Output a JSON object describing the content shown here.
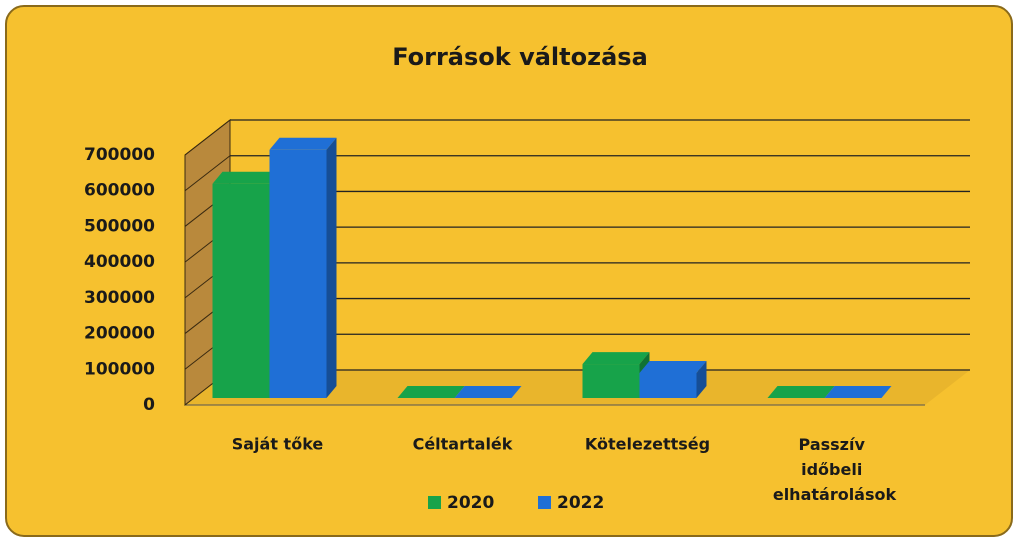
{
  "chart_data": {
    "type": "bar3d",
    "title": "Források változása",
    "categories": [
      "Saját tőke",
      "Céltartalék",
      "Kötelezettség",
      "Passzív időbeli elhatárolások"
    ],
    "series": [
      {
        "name": "2020",
        "color": "#17a34a",
        "values": [
          600000,
          0,
          95000,
          0
        ]
      },
      {
        "name": "2022",
        "color": "#1f6fd6",
        "values": [
          695000,
          0,
          70000,
          0
        ]
      }
    ],
    "ylim": [
      0,
      700000
    ],
    "yticks": [
      0,
      100000,
      200000,
      300000,
      400000,
      500000,
      600000,
      700000
    ],
    "grid": true,
    "legend": "bottom"
  }
}
